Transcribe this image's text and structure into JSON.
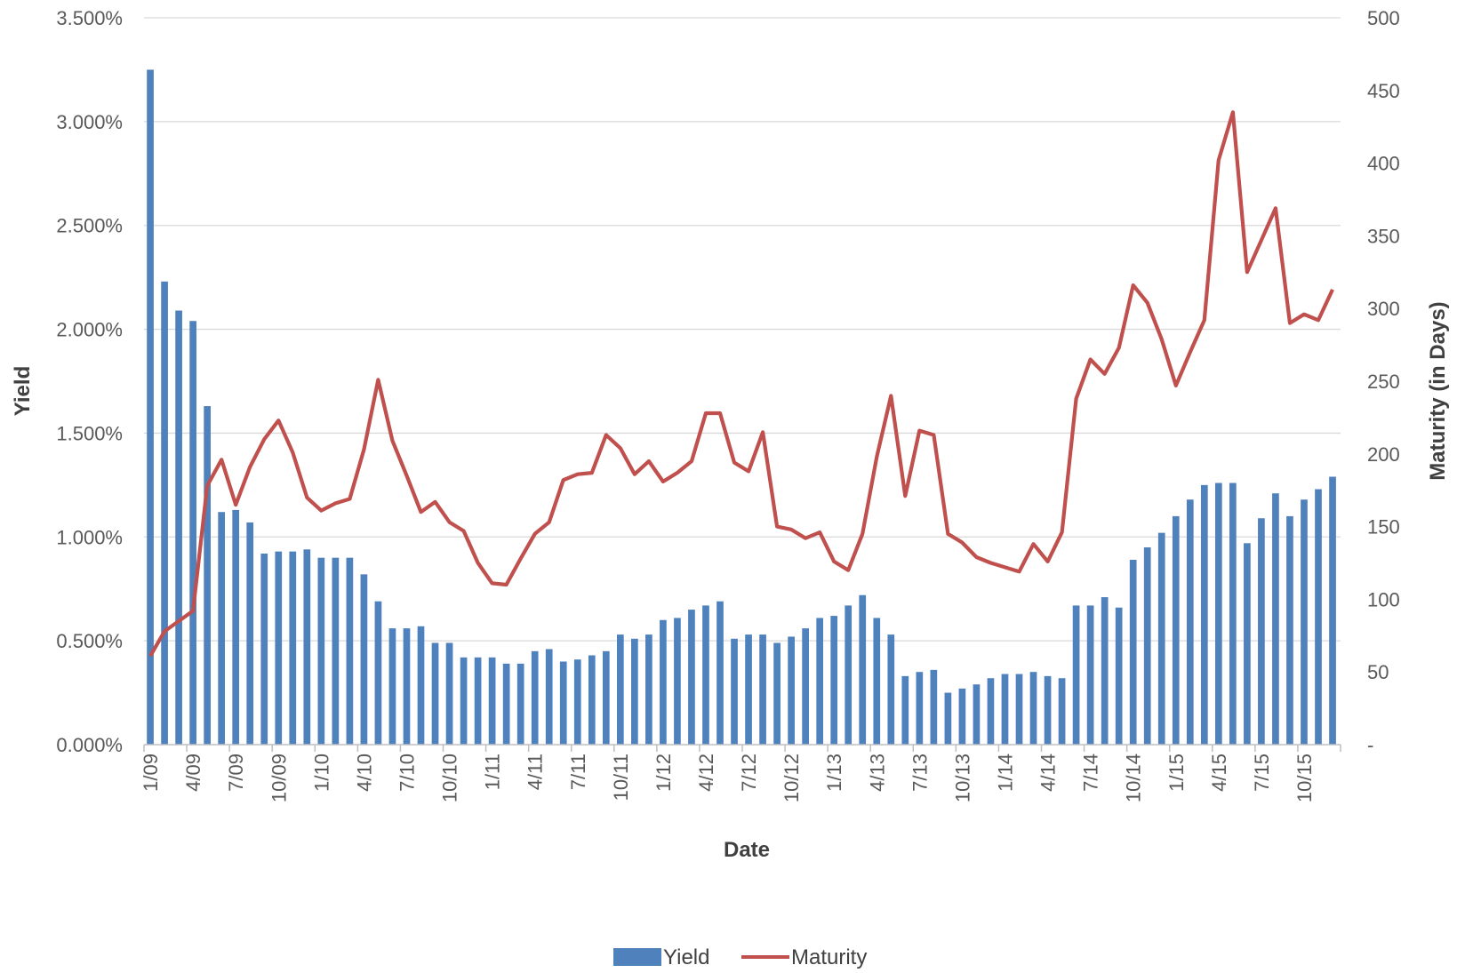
{
  "chart_data": {
    "type": "bar+line",
    "x_label": "Date",
    "y_left_label": "Yield",
    "y_right_label": "Maturity (in Days)",
    "y_left_ticks": [
      "0.000%",
      "0.500%",
      "1.000%",
      "1.500%",
      "2.000%",
      "2.500%",
      "3.000%",
      "3.500%"
    ],
    "y_right_ticks": [
      "-",
      "50",
      "100",
      "150",
      "200",
      "250",
      "300",
      "350",
      "400",
      "450",
      "500"
    ],
    "y_left_range": [
      0,
      3.5
    ],
    "y_right_range": [
      0,
      500
    ],
    "x_tick_labels": [
      "1/09",
      "4/09",
      "7/09",
      "10/09",
      "1/10",
      "4/10",
      "7/10",
      "10/10",
      "1/11",
      "4/11",
      "7/11",
      "10/11",
      "1/12",
      "4/12",
      "7/12",
      "10/12",
      "1/13",
      "4/13",
      "7/13",
      "10/13",
      "1/14",
      "4/14",
      "7/14",
      "10/14",
      "1/15",
      "4/15",
      "7/15",
      "10/15"
    ],
    "grid": "horizontal",
    "legend_position": "bottom",
    "colors": {
      "yield": "#4F81BD",
      "maturity": "#C0504D",
      "grid": "#d9d9d9",
      "axis": "#bfbfbf"
    },
    "series": [
      {
        "name": "Yield",
        "kind": "bar",
        "unit": "%",
        "values": [
          3.25,
          2.23,
          2.09,
          2.04,
          1.63,
          1.12,
          1.13,
          1.07,
          0.92,
          0.93,
          0.93,
          0.94,
          0.9,
          0.9,
          0.9,
          0.82,
          0.69,
          0.56,
          0.56,
          0.57,
          0.49,
          0.49,
          0.42,
          0.42,
          0.42,
          0.39,
          0.39,
          0.45,
          0.46,
          0.4,
          0.41,
          0.43,
          0.45,
          0.53,
          0.51,
          0.53,
          0.6,
          0.61,
          0.65,
          0.67,
          0.69,
          0.51,
          0.53,
          0.53,
          0.49,
          0.52,
          0.56,
          0.61,
          0.62,
          0.67,
          0.72,
          0.61,
          0.53,
          0.33,
          0.35,
          0.36,
          0.25,
          0.27,
          0.29,
          0.32,
          0.34,
          0.34,
          0.35,
          0.33,
          0.32,
          0.67,
          0.67,
          0.71,
          0.66,
          0.89,
          0.95,
          1.02,
          1.1,
          1.18,
          1.25,
          1.26,
          1.26,
          0.97,
          1.09,
          1.21,
          1.1,
          1.18,
          1.23,
          1.29
        ]
      },
      {
        "name": "Maturity",
        "kind": "line",
        "unit": "days",
        "values": [
          61,
          78,
          85,
          92,
          178,
          196,
          165,
          191,
          210,
          223,
          201,
          170,
          161,
          166,
          169,
          203,
          251,
          209,
          185,
          160,
          167,
          153,
          147,
          125,
          111,
          110,
          128,
          145,
          153,
          182,
          186,
          187,
          213,
          204,
          186,
          195,
          181,
          187,
          195,
          228,
          228,
          194,
          188,
          215,
          150,
          148,
          142,
          146,
          126,
          120,
          145,
          198,
          240,
          171,
          216,
          213,
          145,
          139,
          129,
          125,
          122,
          119,
          138,
          126,
          146,
          238,
          265,
          255,
          273,
          316,
          304,
          279,
          247,
          270,
          292,
          402,
          435,
          325,
          347,
          369,
          290,
          296,
          292,
          313
        ]
      }
    ]
  }
}
